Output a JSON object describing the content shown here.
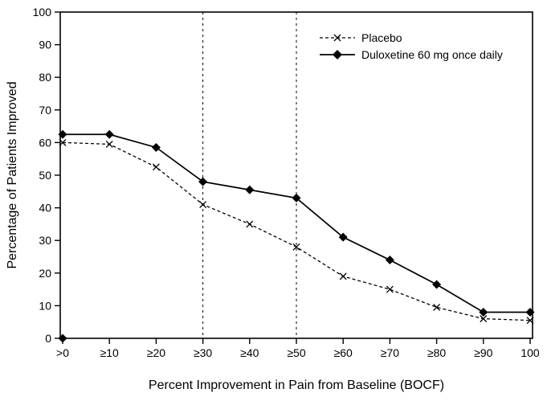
{
  "chart_data": {
    "type": "line",
    "title": "",
    "xlabel": "Percent Improvement in Pain from Baseline (BOCF)",
    "ylabel": "Percentage of Patients Improved",
    "categories": [
      ">0",
      "≥10",
      "≥20",
      "≥30",
      "≥40",
      "≥50",
      "≥60",
      "≥70",
      "≥80",
      "≥90",
      "100"
    ],
    "ylim": [
      0,
      100
    ],
    "ytick_step": 10,
    "yticks": [
      0,
      10,
      20,
      30,
      40,
      50,
      60,
      70,
      80,
      90,
      100
    ],
    "grid": false,
    "legend_position": "top-right",
    "reference_lines_x": [
      "≥30",
      "≥50"
    ],
    "origin_marker": {
      "x": ">0",
      "y": 0
    },
    "colors": {
      "line": "#000000",
      "background": "#ffffff"
    },
    "series": [
      {
        "name": "Placebo",
        "line": "dashed",
        "marker": "x",
        "values": [
          60,
          59.5,
          52.5,
          41,
          35,
          28,
          19,
          15,
          9.5,
          6,
          5.5
        ]
      },
      {
        "name": "Duloxetine 60 mg once daily",
        "line": "solid",
        "marker": "diamond",
        "values": [
          62.5,
          62.5,
          58.5,
          48,
          45.5,
          43,
          31,
          24,
          16.5,
          8,
          8
        ]
      }
    ]
  }
}
